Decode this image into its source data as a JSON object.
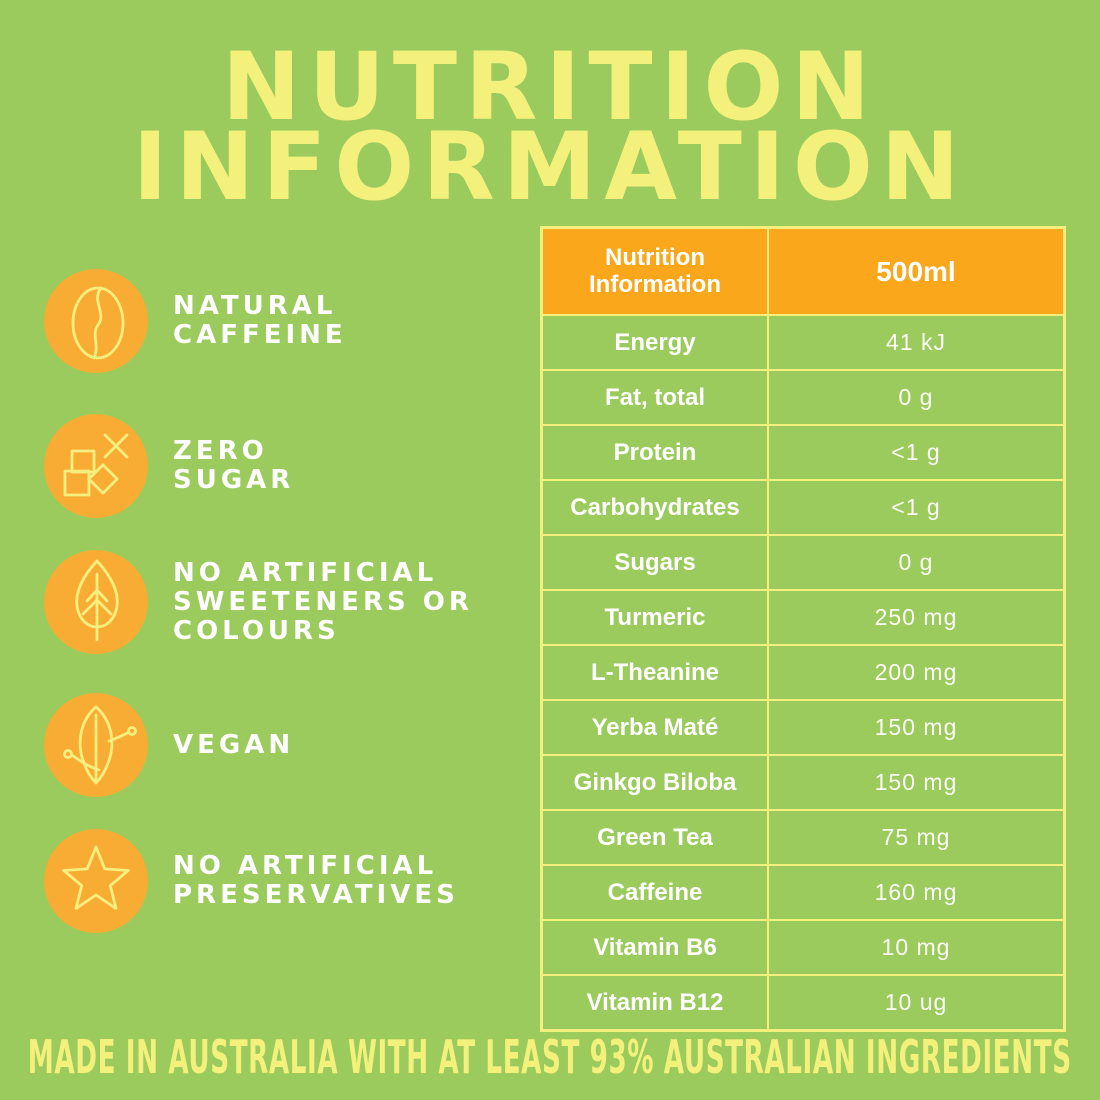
{
  "page": {
    "title_line1": "NUTRITION",
    "title_line2": "INFORMATION",
    "footer": "MADE IN AUSTRALIA WITH AT LEAST 93% AUSTRALIAN INGREDIENTS"
  },
  "colors": {
    "background_green": "#9BCB5D",
    "accent_yellow": "#F4F07C",
    "icon_circle_orange": "#F9AC33",
    "table_header_orange": "#FAA71C",
    "text_white": "#FFFFFF"
  },
  "features": [
    {
      "icon": "coffee-bean-icon",
      "lines": [
        "NATURAL",
        "CAFFEINE"
      ]
    },
    {
      "icon": "sugar-cubes-icon",
      "lines": [
        "ZERO",
        "SUGAR"
      ]
    },
    {
      "icon": "leaf-icon",
      "lines": [
        "NO ARTIFICIAL",
        "SWEETENERS OR",
        "COLOURS"
      ]
    },
    {
      "icon": "sprout-icon",
      "lines": [
        "VEGAN"
      ]
    },
    {
      "icon": "star-icon",
      "lines": [
        "NO ARTIFICIAL",
        "PRESERVATIVES"
      ]
    }
  ],
  "table": {
    "header": {
      "col1": "Nutrition Information",
      "col2": "500ml"
    },
    "rows": [
      {
        "label": "Energy",
        "value": "41 kJ"
      },
      {
        "label": "Fat, total",
        "value": "0 g"
      },
      {
        "label": "Protein",
        "value": "<1 g"
      },
      {
        "label": "Carbohydrates",
        "value": "<1 g"
      },
      {
        "label": "Sugars",
        "value": "0 g"
      },
      {
        "label": "Turmeric",
        "value": "250 mg"
      },
      {
        "label": "L-Theanine",
        "value": "200 mg"
      },
      {
        "label": "Yerba Maté",
        "value": "150 mg"
      },
      {
        "label": "Ginkgo Biloba",
        "value": "150 mg"
      },
      {
        "label": "Green Tea",
        "value": "75 mg"
      },
      {
        "label": "Caffeine",
        "value": "160 mg"
      },
      {
        "label": "Vitamin B6",
        "value": "10 mg"
      },
      {
        "label": "Vitamin B12",
        "value": "10 ug"
      }
    ]
  }
}
